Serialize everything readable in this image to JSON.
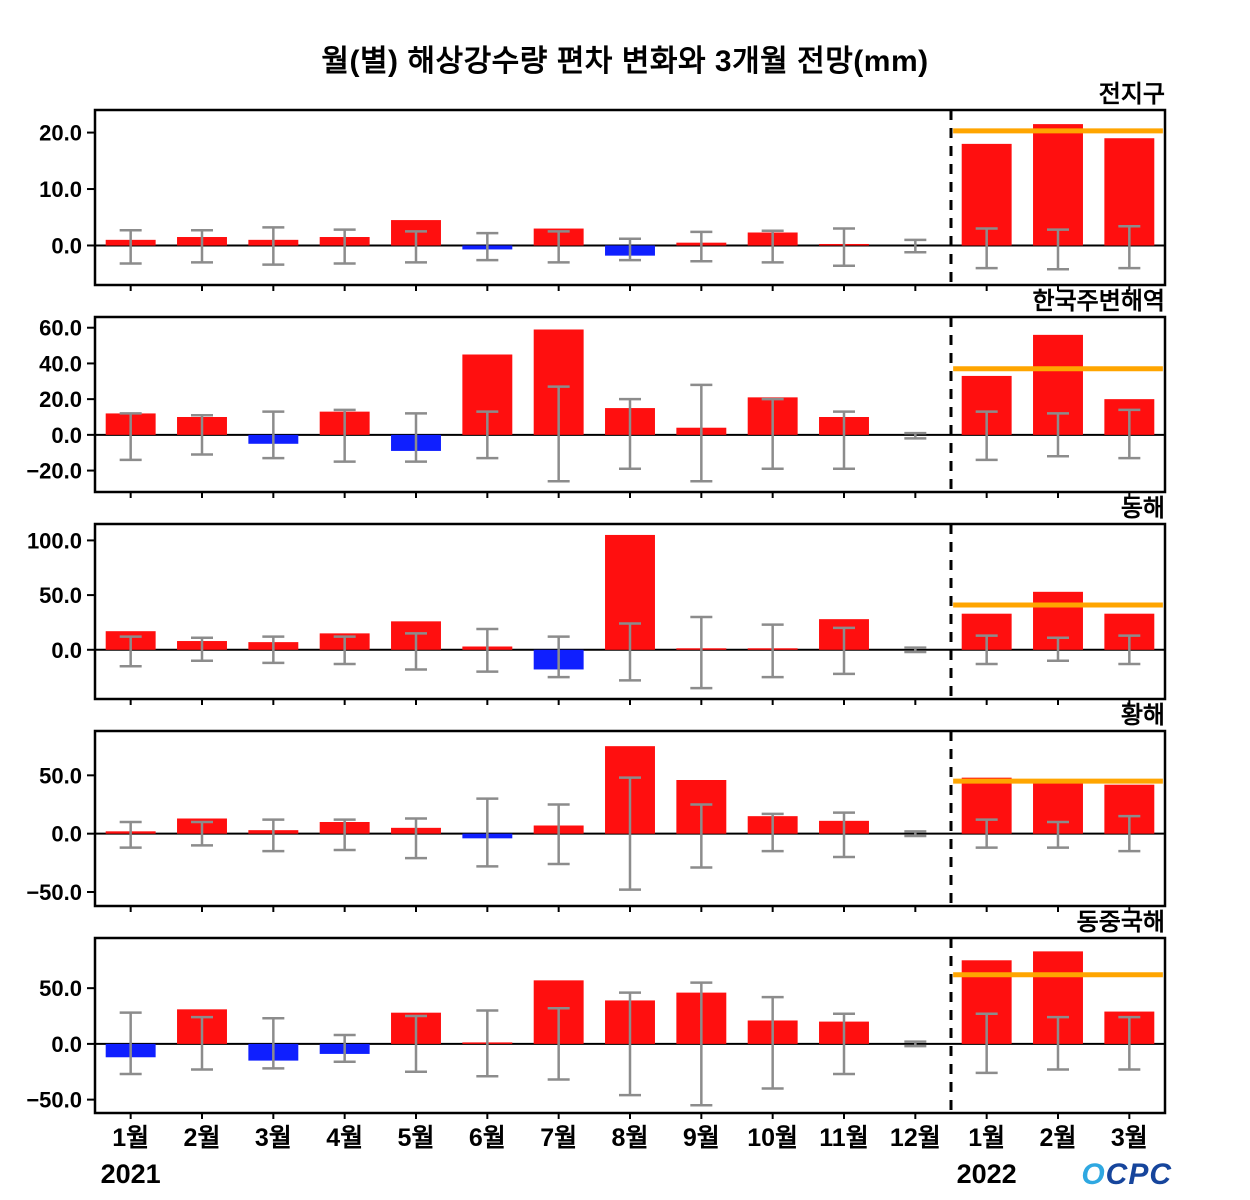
{
  "title": "월(별) 해상강수량 편차 변화와 3개월 전망(mm)",
  "logo_first": "O",
  "logo_rest": "CPC",
  "colors": {
    "bar_positive": "#ff0f0f",
    "bar_negative": "#0f1fff",
    "forecast_line": "#ffa500",
    "error_bar": "#8c8c8c",
    "axis": "#000000"
  },
  "chart_data": {
    "type": "bar",
    "x_labels": [
      "1월",
      "2월",
      "3월",
      "4월",
      "5월",
      "6월",
      "7월",
      "8월",
      "9월",
      "10월",
      "11월",
      "12월",
      "1월",
      "2월",
      "3월"
    ],
    "year_labels": [
      {
        "text": "2021",
        "index": 0
      },
      {
        "text": "2022",
        "index": 12
      }
    ],
    "forecast_start_index": 12,
    "panels": [
      {
        "label": "전지구",
        "ylim": [
          -7,
          24
        ],
        "yticks": [
          0,
          10,
          20
        ],
        "values": [
          1.0,
          1.5,
          1.0,
          1.5,
          4.5,
          -0.7,
          3.0,
          -1.8,
          0.5,
          2.3,
          0.2,
          0,
          18.0,
          21.5,
          19.0
        ],
        "err": [
          [
            -3.2,
            2.7
          ],
          [
            -3.0,
            2.7
          ],
          [
            -3.4,
            3.2
          ],
          [
            -3.2,
            2.8
          ],
          [
            -3.0,
            2.5
          ],
          [
            -2.6,
            2.2
          ],
          [
            -3.0,
            2.5
          ],
          [
            -2.6,
            1.2
          ],
          [
            -2.8,
            2.4
          ],
          [
            -3.0,
            2.6
          ],
          [
            -3.6,
            3.0
          ],
          [
            -1.2,
            1.0
          ],
          [
            -4.0,
            3.0
          ],
          [
            -4.2,
            2.8
          ],
          [
            -4.0,
            3.4
          ]
        ],
        "forecast_line": 20.3
      },
      {
        "label": "한국주변해역",
        "ylim": [
          -32,
          66
        ],
        "yticks": [
          -20,
          0,
          20,
          40,
          60
        ],
        "values": [
          12,
          10,
          -5,
          13,
          -9,
          45,
          59,
          15,
          4,
          21,
          10,
          0,
          33,
          56,
          20
        ],
        "err": [
          [
            -14,
            12
          ],
          [
            -11,
            11
          ],
          [
            -13,
            13
          ],
          [
            -15,
            14
          ],
          [
            -15,
            12
          ],
          [
            -13,
            13
          ],
          [
            -26,
            27
          ],
          [
            -19,
            20
          ],
          [
            -26,
            28
          ],
          [
            -19,
            20
          ],
          [
            -19,
            13
          ],
          [
            -2,
            1
          ],
          [
            -14,
            13
          ],
          [
            -12,
            12
          ],
          [
            -13,
            14
          ]
        ],
        "forecast_line": 37
      },
      {
        "label": "동해",
        "ylim": [
          -45,
          115
        ],
        "yticks": [
          0,
          50,
          100
        ],
        "values": [
          17,
          8,
          7,
          15,
          26,
          3,
          -18,
          105,
          0.8,
          0.5,
          28,
          0,
          33,
          53,
          33
        ],
        "err": [
          [
            -15,
            12
          ],
          [
            -10,
            11
          ],
          [
            -12,
            12
          ],
          [
            -13,
            12
          ],
          [
            -18,
            15
          ],
          [
            -20,
            19
          ],
          [
            -25,
            12
          ],
          [
            -28,
            24
          ],
          [
            -35,
            30
          ],
          [
            -25,
            23
          ],
          [
            -22,
            20
          ],
          [
            -2,
            2
          ],
          [
            -13,
            13
          ],
          [
            -10,
            11
          ],
          [
            -13,
            13
          ]
        ],
        "forecast_line": 41
      },
      {
        "label": "황해",
        "ylim": [
          -62,
          88
        ],
        "yticks": [
          -50,
          0,
          50
        ],
        "values": [
          2,
          13,
          3,
          10,
          5,
          -4,
          7,
          75,
          46,
          15,
          11,
          0,
          48,
          45,
          42
        ],
        "err": [
          [
            -12,
            10
          ],
          [
            -10,
            10
          ],
          [
            -15,
            12
          ],
          [
            -14,
            12
          ],
          [
            -21,
            13
          ],
          [
            -28,
            30
          ],
          [
            -26,
            25
          ],
          [
            -48,
            48
          ],
          [
            -29,
            25
          ],
          [
            -15,
            17
          ],
          [
            -20,
            18
          ],
          [
            -2,
            2
          ],
          [
            -12,
            12
          ],
          [
            -12,
            10
          ],
          [
            -15,
            15
          ]
        ],
        "forecast_line": 45
      },
      {
        "label": "동중국해",
        "ylim": [
          -62,
          95
        ],
        "yticks": [
          -50,
          0,
          50
        ],
        "values": [
          -12,
          31,
          -15,
          -9,
          28,
          1,
          57,
          39,
          46,
          21,
          20,
          0,
          75,
          83,
          29
        ],
        "err": [
          [
            -27,
            28
          ],
          [
            -23,
            24
          ],
          [
            -22,
            23
          ],
          [
            -16,
            8
          ],
          [
            -25,
            25
          ],
          [
            -29,
            30
          ],
          [
            -32,
            32
          ],
          [
            -46,
            46
          ],
          [
            -55,
            55
          ],
          [
            -40,
            42
          ],
          [
            -27,
            27
          ],
          [
            -2,
            2
          ],
          [
            -26,
            27
          ],
          [
            -23,
            24
          ],
          [
            -23,
            24
          ]
        ],
        "forecast_line": 62
      }
    ]
  }
}
